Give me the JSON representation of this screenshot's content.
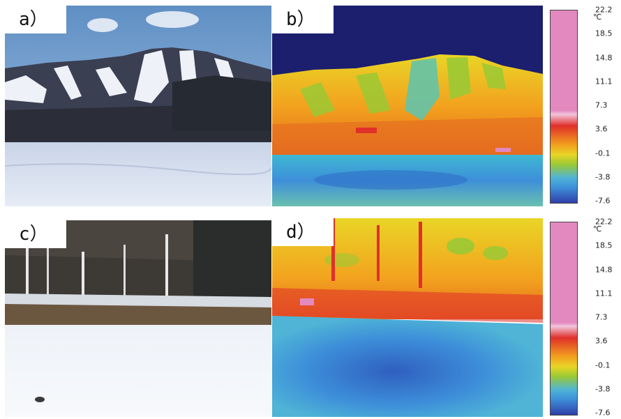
{
  "panels": {
    "a": {
      "label": "a）",
      "scene": "photo of snowy ski slope mountain"
    },
    "b": {
      "label": "b）",
      "scene": "thermal image of ski slope mountain"
    },
    "c": {
      "label": "c）",
      "scene": "photo of birch forest with snowfield"
    },
    "d": {
      "label": "d）",
      "scene": "thermal image of birch forest with snowfield"
    }
  },
  "temperature_scale": {
    "unit": "℃",
    "ticks": [
      "22.2",
      "18.5",
      "14.8",
      "11.1",
      "7.3",
      "3.6",
      "-0.1",
      "-3.8",
      "-7.6"
    ]
  },
  "colors": {
    "sky_photo": "#7fa7cf",
    "snow_photo": "#dfe6f4",
    "thermal_sky": "#1b1f6e",
    "thermal_warm": "#f2a21e",
    "thermal_hot": "#e0302a",
    "thermal_mid": "#9ac934",
    "thermal_cold": "#3d8fd9",
    "scale_top": "#e389bf"
  }
}
